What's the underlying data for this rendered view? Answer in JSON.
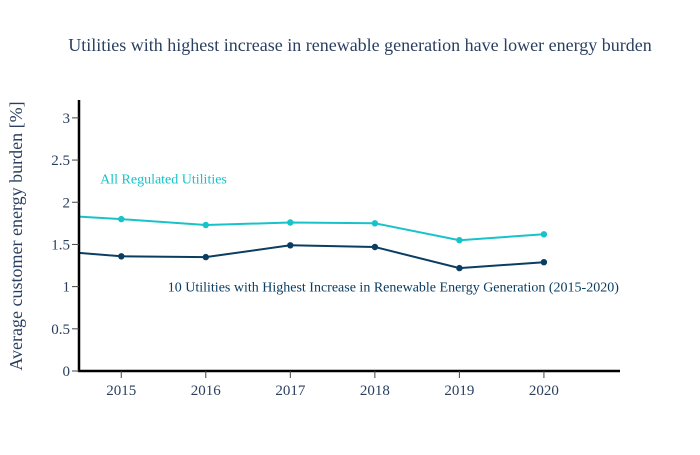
{
  "chart_data": {
    "type": "line",
    "title": "Utilities with highest increase in renewable generation have lower energy burden",
    "xlabel": "",
    "ylabel": "Average customer energy burden [%]",
    "xlim": [
      2014.5,
      2020.9
    ],
    "ylim": [
      0,
      3.2
    ],
    "x_ticks": [
      2015,
      2016,
      2017,
      2018,
      2019,
      2020
    ],
    "y_ticks": [
      0,
      0.5,
      1,
      1.5,
      2,
      2.5,
      3
    ],
    "x_tick_labels": [
      "2015",
      "2016",
      "2017",
      "2018",
      "2019",
      "2020"
    ],
    "y_tick_labels": [
      "0",
      "0.5",
      "1",
      "1.5",
      "2",
      "2.5",
      "3"
    ],
    "grid": false,
    "legend": "none",
    "series": [
      {
        "color": "#17c3c9",
        "points": [
          [
            2014.5,
            1.83
          ],
          [
            2015,
            1.8
          ],
          [
            2016,
            1.73
          ],
          [
            2017,
            1.76
          ],
          [
            2018,
            1.75
          ],
          [
            2019,
            1.55
          ],
          [
            2020,
            1.62
          ]
        ]
      },
      {
        "color": "#0a3d62",
        "points": [
          [
            2014.5,
            1.4
          ],
          [
            2015,
            1.36
          ],
          [
            2016,
            1.35
          ],
          [
            2017,
            1.49
          ],
          [
            2018,
            1.47
          ],
          [
            2019,
            1.22
          ],
          [
            2020,
            1.29
          ]
        ]
      }
    ],
    "annotations": [
      {
        "text": "All Regulated Utilities",
        "x": 2014.75,
        "y": 2.28,
        "color": "#17c3c9"
      },
      {
        "text": "10 Utilities with Highest Increase in Renewable Energy Generation (2015-2020)",
        "x": 2015.55,
        "y": 1.0,
        "color": "#0a3d62"
      }
    ]
  }
}
